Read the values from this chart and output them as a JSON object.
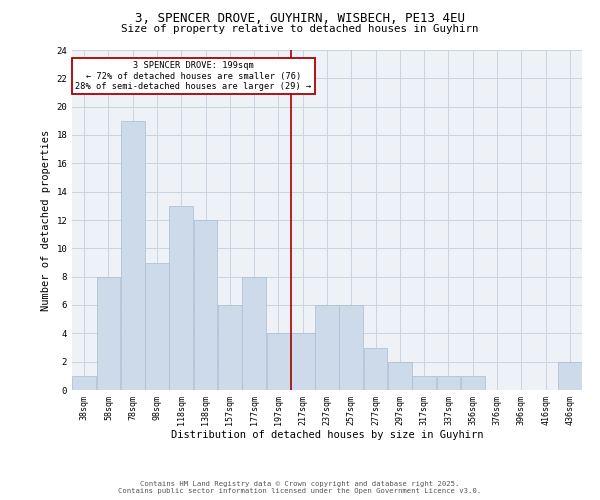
{
  "title": "3, SPENCER DROVE, GUYHIRN, WISBECH, PE13 4EU",
  "subtitle": "Size of property relative to detached houses in Guyhirn",
  "xlabel": "Distribution of detached houses by size in Guyhirn",
  "ylabel": "Number of detached properties",
  "bar_color": "#ccdaea",
  "bar_edge_color": "#aabcce",
  "categories": [
    "38sqm",
    "58sqm",
    "78sqm",
    "98sqm",
    "118sqm",
    "138sqm",
    "157sqm",
    "177sqm",
    "197sqm",
    "217sqm",
    "237sqm",
    "257sqm",
    "277sqm",
    "297sqm",
    "317sqm",
    "337sqm",
    "356sqm",
    "376sqm",
    "396sqm",
    "416sqm",
    "436sqm"
  ],
  "values": [
    1,
    8,
    19,
    9,
    13,
    12,
    6,
    8,
    4,
    4,
    6,
    6,
    3,
    2,
    1,
    1,
    1,
    0,
    0,
    0,
    2
  ],
  "ylim": [
    0,
    24
  ],
  "yticks": [
    0,
    2,
    4,
    6,
    8,
    10,
    12,
    14,
    16,
    18,
    20,
    22,
    24
  ],
  "vline_index": 8.5,
  "annotation_line1": "3 SPENCER DROVE: 199sqm",
  "annotation_line2": "← 72% of detached houses are smaller (76)",
  "annotation_line3": "28% of semi-detached houses are larger (29) →",
  "annotation_box_color": "#aa0000",
  "vline_color": "#aa0000",
  "grid_color": "#c8d4e0",
  "background_color": "#eef2f7",
  "footer_line1": "Contains HM Land Registry data © Crown copyright and database right 2025.",
  "footer_line2": "Contains public sector information licensed under the Open Government Licence v3.0."
}
